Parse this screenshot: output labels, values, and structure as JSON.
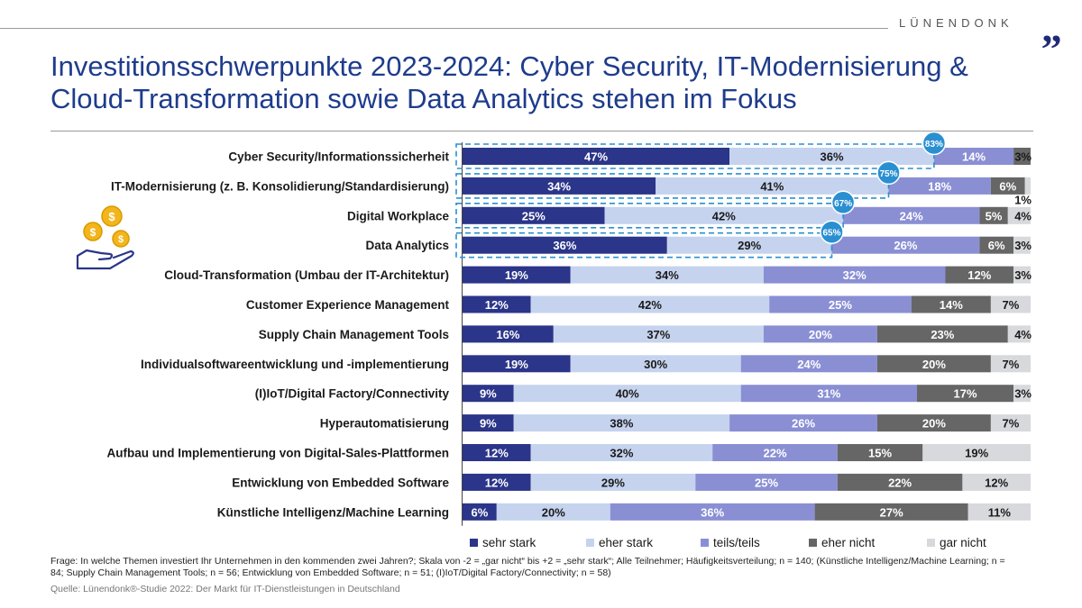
{
  "brand": {
    "name": "LÜNENDONK",
    "mark": "„"
  },
  "title": "Investitionsschwerpunkte 2023-2024: Cyber Security, IT-Modernisierung & Cloud-Transformation sowie Data Analytics stehen im Fokus",
  "footnote": "Frage: In welche Themen investiert Ihr Unternehmen in den kommenden zwei Jahren?; Skala von -2 = „gar nicht“ bis +2 = „sehr stark“; Alle Teilnehmer; Häufigkeitsverteilung; n = 140; (Künstliche Intelligenz/Machine Learning; n = 84; Supply Chain Management Tools; n = 56; Entwicklung von Embedded Software; n = 51; (I)IoT/Digital Factory/Connectivity; n = 58)",
  "source": "Quelle: Lünendonk®-Studie 2022: Der Markt für IT-Dienstleistungen in Deutschland",
  "colors": {
    "sehr_stark": "#2b3589",
    "eher_stark": "#c5d3ee",
    "teils_teils": "#8a8fd4",
    "eher_nicht": "#666666",
    "gar_nicht": "#d7d9dc",
    "highlight": "#2a8fd1",
    "title": "#1e3c8c"
  },
  "chart_data": {
    "type": "bar",
    "stacked": true,
    "orientation": "horizontal",
    "unit": "%",
    "categories": [
      "Cyber Security/Informationssicherheit",
      "IT-Modernisierung (z. B. Konsolidierung/Standardisierung)",
      "Digital Workplace",
      "Data Analytics",
      "Cloud-Transformation (Umbau der IT-Architektur)",
      "Customer Experience Management",
      "Supply Chain Management Tools",
      "Individualsoftwareentwicklung und -implementierung",
      "(I)IoT/Digital Factory/Connectivity",
      "Hyperautomatisierung",
      "Aufbau und Implementierung von Digital-Sales-Plattformen",
      "Entwicklung von Embedded Software",
      "Künstliche Intelligenz/Machine Learning"
    ],
    "series": [
      {
        "name": "sehr stark",
        "values": [
          47,
          34,
          25,
          36,
          19,
          12,
          16,
          19,
          9,
          9,
          12,
          12,
          6
        ]
      },
      {
        "name": "eher stark",
        "values": [
          36,
          41,
          42,
          29,
          34,
          42,
          37,
          30,
          40,
          38,
          32,
          29,
          20
        ]
      },
      {
        "name": "teils/teils",
        "values": [
          14,
          18,
          24,
          26,
          32,
          25,
          20,
          24,
          31,
          26,
          22,
          25,
          36
        ]
      },
      {
        "name": "eher nicht",
        "values": [
          3,
          6,
          5,
          6,
          12,
          14,
          23,
          20,
          17,
          20,
          15,
          22,
          27
        ]
      },
      {
        "name": "gar nicht",
        "values": [
          0,
          1,
          4,
          3,
          3,
          7,
          4,
          7,
          3,
          7,
          19,
          12,
          11
        ]
      }
    ],
    "highlights": [
      {
        "category": "Cyber Security/Informationssicherheit",
        "label": "83%"
      },
      {
        "category": "IT-Modernisierung (z. B. Konsolidierung/Standardisierung)",
        "label": "75%"
      },
      {
        "category": "Digital Workplace",
        "label": "67%"
      },
      {
        "category": "Data Analytics",
        "label": "65%"
      }
    ],
    "legend": [
      "sehr stark",
      "eher stark",
      "teils/teils",
      "eher nicht",
      "gar nicht"
    ],
    "legend_position": "bottom",
    "xlim": [
      0,
      100
    ]
  }
}
